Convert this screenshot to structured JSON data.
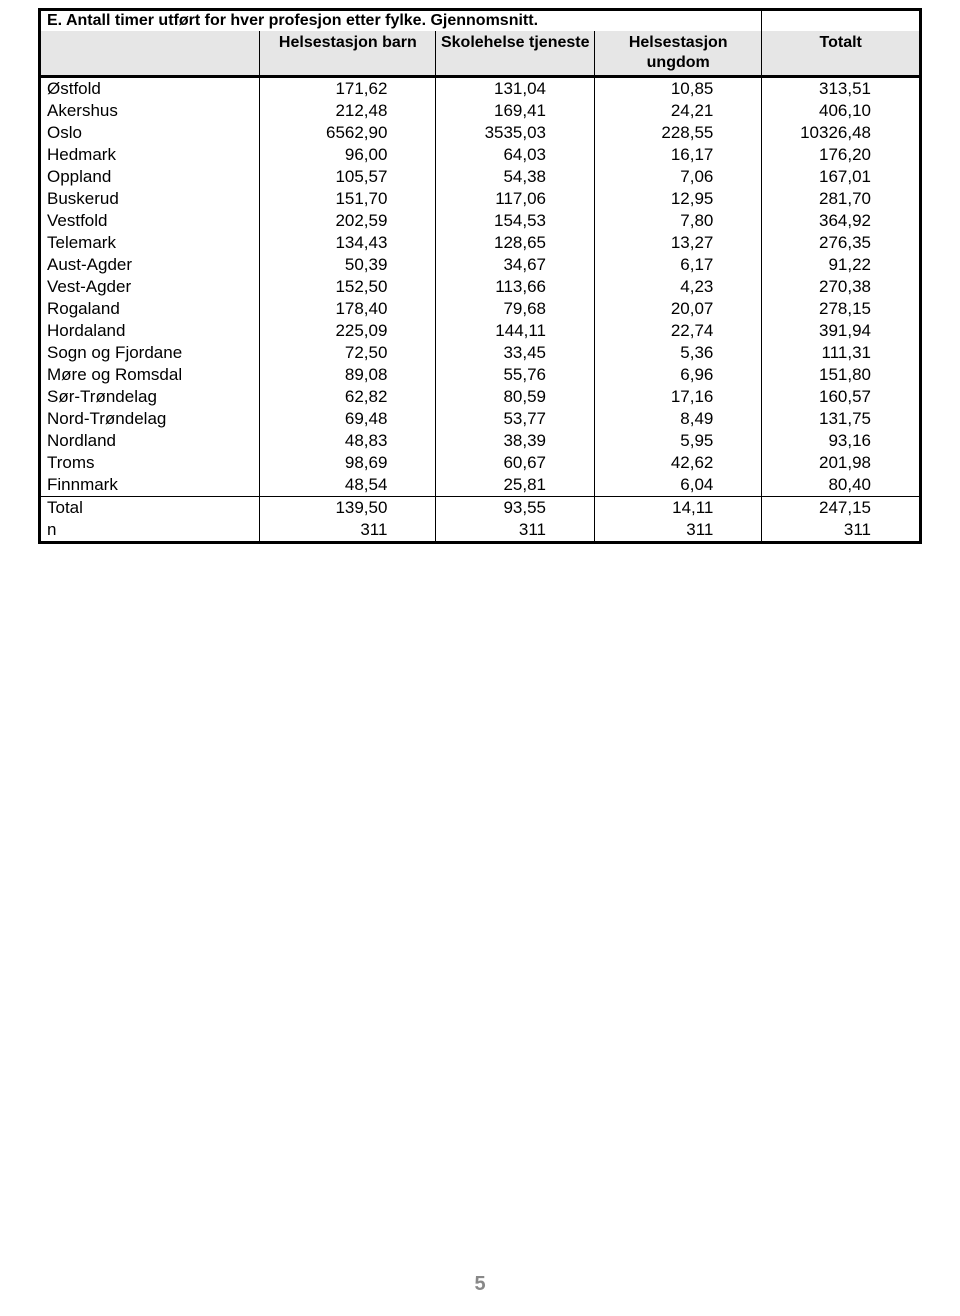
{
  "table": {
    "title": "E. Antall timer utført for hver profesjon etter fylke. Gjennomsnitt.",
    "columns": [
      "",
      "Helsestasjon barn",
      "Skolehelse tjeneste",
      "Helsestasjon ungdom",
      "Totalt"
    ],
    "rows": [
      [
        "Østfold",
        "171,62",
        "131,04",
        "10,85",
        "313,51"
      ],
      [
        "Akershus",
        "212,48",
        "169,41",
        "24,21",
        "406,10"
      ],
      [
        "Oslo",
        "6562,90",
        "3535,03",
        "228,55",
        "10326,48"
      ],
      [
        "Hedmark",
        "96,00",
        "64,03",
        "16,17",
        "176,20"
      ],
      [
        "Oppland",
        "105,57",
        "54,38",
        "7,06",
        "167,01"
      ],
      [
        "Buskerud",
        "151,70",
        "117,06",
        "12,95",
        "281,70"
      ],
      [
        "Vestfold",
        "202,59",
        "154,53",
        "7,80",
        "364,92"
      ],
      [
        "Telemark",
        "134,43",
        "128,65",
        "13,27",
        "276,35"
      ],
      [
        "Aust-Agder",
        "50,39",
        "34,67",
        "6,17",
        "91,22"
      ],
      [
        "Vest-Agder",
        "152,50",
        "113,66",
        "4,23",
        "270,38"
      ],
      [
        "Rogaland",
        "178,40",
        "79,68",
        "20,07",
        "278,15"
      ],
      [
        "Hordaland",
        "225,09",
        "144,11",
        "22,74",
        "391,94"
      ],
      [
        "Sogn og Fjordane",
        "72,50",
        "33,45",
        "5,36",
        "111,31"
      ],
      [
        "Møre og Romsdal",
        "89,08",
        "55,76",
        "6,96",
        "151,80"
      ],
      [
        "Sør-Trøndelag",
        "62,82",
        "80,59",
        "17,16",
        "160,57"
      ],
      [
        "Nord-Trøndelag",
        "69,48",
        "53,77",
        "8,49",
        "131,75"
      ],
      [
        "Nordland",
        "48,83",
        "38,39",
        "5,95",
        "93,16"
      ],
      [
        "Troms",
        "98,69",
        "60,67",
        "42,62",
        "201,98"
      ],
      [
        "Finnmark",
        "48,54",
        "25,81",
        "6,04",
        "80,40"
      ]
    ],
    "totals": [
      [
        "Total",
        "139,50",
        "93,55",
        "14,11",
        "247,15"
      ],
      [
        "n",
        "311",
        "311",
        "311",
        "311"
      ]
    ]
  },
  "page_number": "5"
}
